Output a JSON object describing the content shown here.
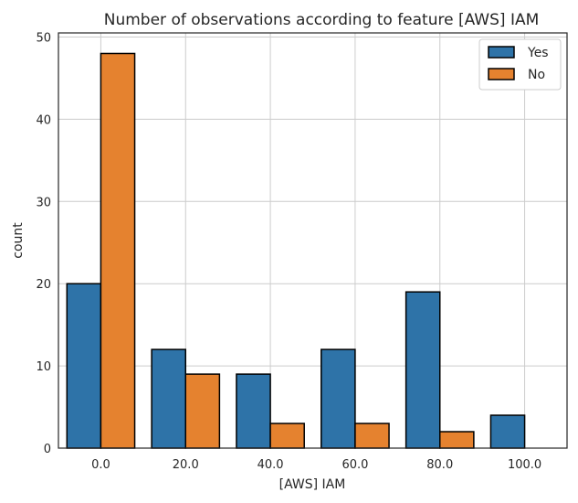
{
  "chart_data": {
    "type": "bar",
    "title": "Number of observations according to feature [AWS] IAM",
    "xlabel": "[AWS] IAM",
    "ylabel": "count",
    "categories": [
      "0.0",
      "20.0",
      "40.0",
      "60.0",
      "80.0",
      "100.0"
    ],
    "series": [
      {
        "name": "Yes",
        "color": "#2e73a8",
        "values": [
          20,
          12,
          9,
          12,
          19,
          4
        ]
      },
      {
        "name": "No",
        "color": "#e5822f",
        "values": [
          48,
          9,
          3,
          3,
          2,
          0
        ]
      }
    ],
    "ylim": [
      0,
      50.5
    ],
    "yticks": [
      0,
      10,
      20,
      30,
      40,
      50
    ],
    "grid": true,
    "legend_position": "top-right"
  }
}
